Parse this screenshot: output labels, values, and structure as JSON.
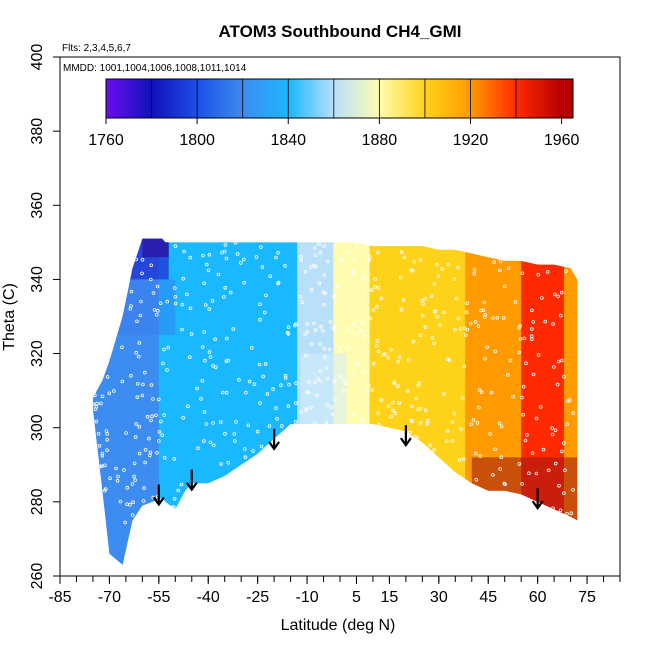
{
  "chart_data": {
    "type": "heatmap",
    "title": "ATOM3 Southbound CH4_GMI",
    "annotation_flights": "Flts: 2,3,4,5,6,7",
    "annotation_dates": "MMDD: 1001,1004,1006,1008,1011,1014",
    "xlabel": "Latitude (deg N)",
    "ylabel": "Theta (C)",
    "xlim": [
      -85,
      85
    ],
    "ylim": [
      260,
      400
    ],
    "x_ticks": [
      -85,
      -70,
      -55,
      -40,
      -25,
      -10,
      5,
      15,
      30,
      45,
      60,
      75
    ],
    "x_minor_step": 5,
    "y_ticks": [
      260,
      280,
      300,
      320,
      340,
      360,
      380,
      400
    ],
    "colorbar": {
      "levels": [
        1760,
        1780,
        1800,
        1820,
        1840,
        1860,
        1880,
        1900,
        1920,
        1940,
        1960,
        1965
      ],
      "labels": [
        1760,
        1800,
        1840,
        1880,
        1920,
        1960
      ],
      "colors": [
        "#6a0ff0",
        "#1010b8",
        "#1c4fe6",
        "#3d8cf0",
        "#1ab8ff",
        "#b8e0fa",
        "#fffcb0",
        "#ffd21a",
        "#ff9a00",
        "#ff2a00",
        "#b80000"
      ]
    },
    "boundary": {
      "lat": [
        -75,
        -72,
        -70,
        -66,
        -63,
        -60,
        -54,
        -53,
        -50,
        -47,
        -45,
        -40,
        -35,
        -30,
        -25,
        -20,
        -15,
        -10,
        -5,
        0,
        5,
        10,
        15,
        20,
        25,
        30,
        35,
        40,
        45,
        50,
        55,
        60,
        65,
        70,
        72
      ],
      "upper": [
        308,
        313,
        318,
        330,
        343,
        351,
        351,
        350,
        350,
        350,
        350,
        350,
        350,
        350,
        350,
        350,
        350,
        350,
        350,
        350,
        350,
        349,
        349,
        349,
        349,
        348,
        348,
        347,
        346,
        345,
        345,
        344,
        344,
        343,
        340
      ],
      "lower": [
        305,
        282,
        266,
        263,
        275,
        279,
        281,
        280,
        278,
        283,
        285,
        285,
        287,
        290,
        293,
        297,
        301,
        301,
        301,
        301,
        301,
        301,
        300,
        299,
        296,
        292,
        288,
        285,
        283,
        283,
        282,
        280,
        278,
        276,
        275
      ]
    },
    "ch4_profile": {
      "lat": [
        -75,
        -65,
        -60,
        -55,
        -50,
        -40,
        -30,
        -20,
        -15,
        -10,
        -5,
        0,
        5,
        10,
        20,
        30,
        40,
        45,
        50,
        55,
        60,
        65,
        70,
        72
      ],
      "ch4": [
        1835,
        1838,
        1836,
        1840,
        1842,
        1842,
        1844,
        1850,
        1856,
        1864,
        1874,
        1884,
        1895,
        1902,
        1906,
        1912,
        1922,
        1930,
        1934,
        1940,
        1944,
        1942,
        1938,
        1936
      ]
    },
    "arrows": [
      {
        "lat": -55,
        "theta": 282
      },
      {
        "lat": -45,
        "theta": 286
      },
      {
        "lat": -20,
        "theta": 297
      },
      {
        "lat": 20,
        "theta": 298
      },
      {
        "lat": 60,
        "theta": 281
      }
    ]
  }
}
